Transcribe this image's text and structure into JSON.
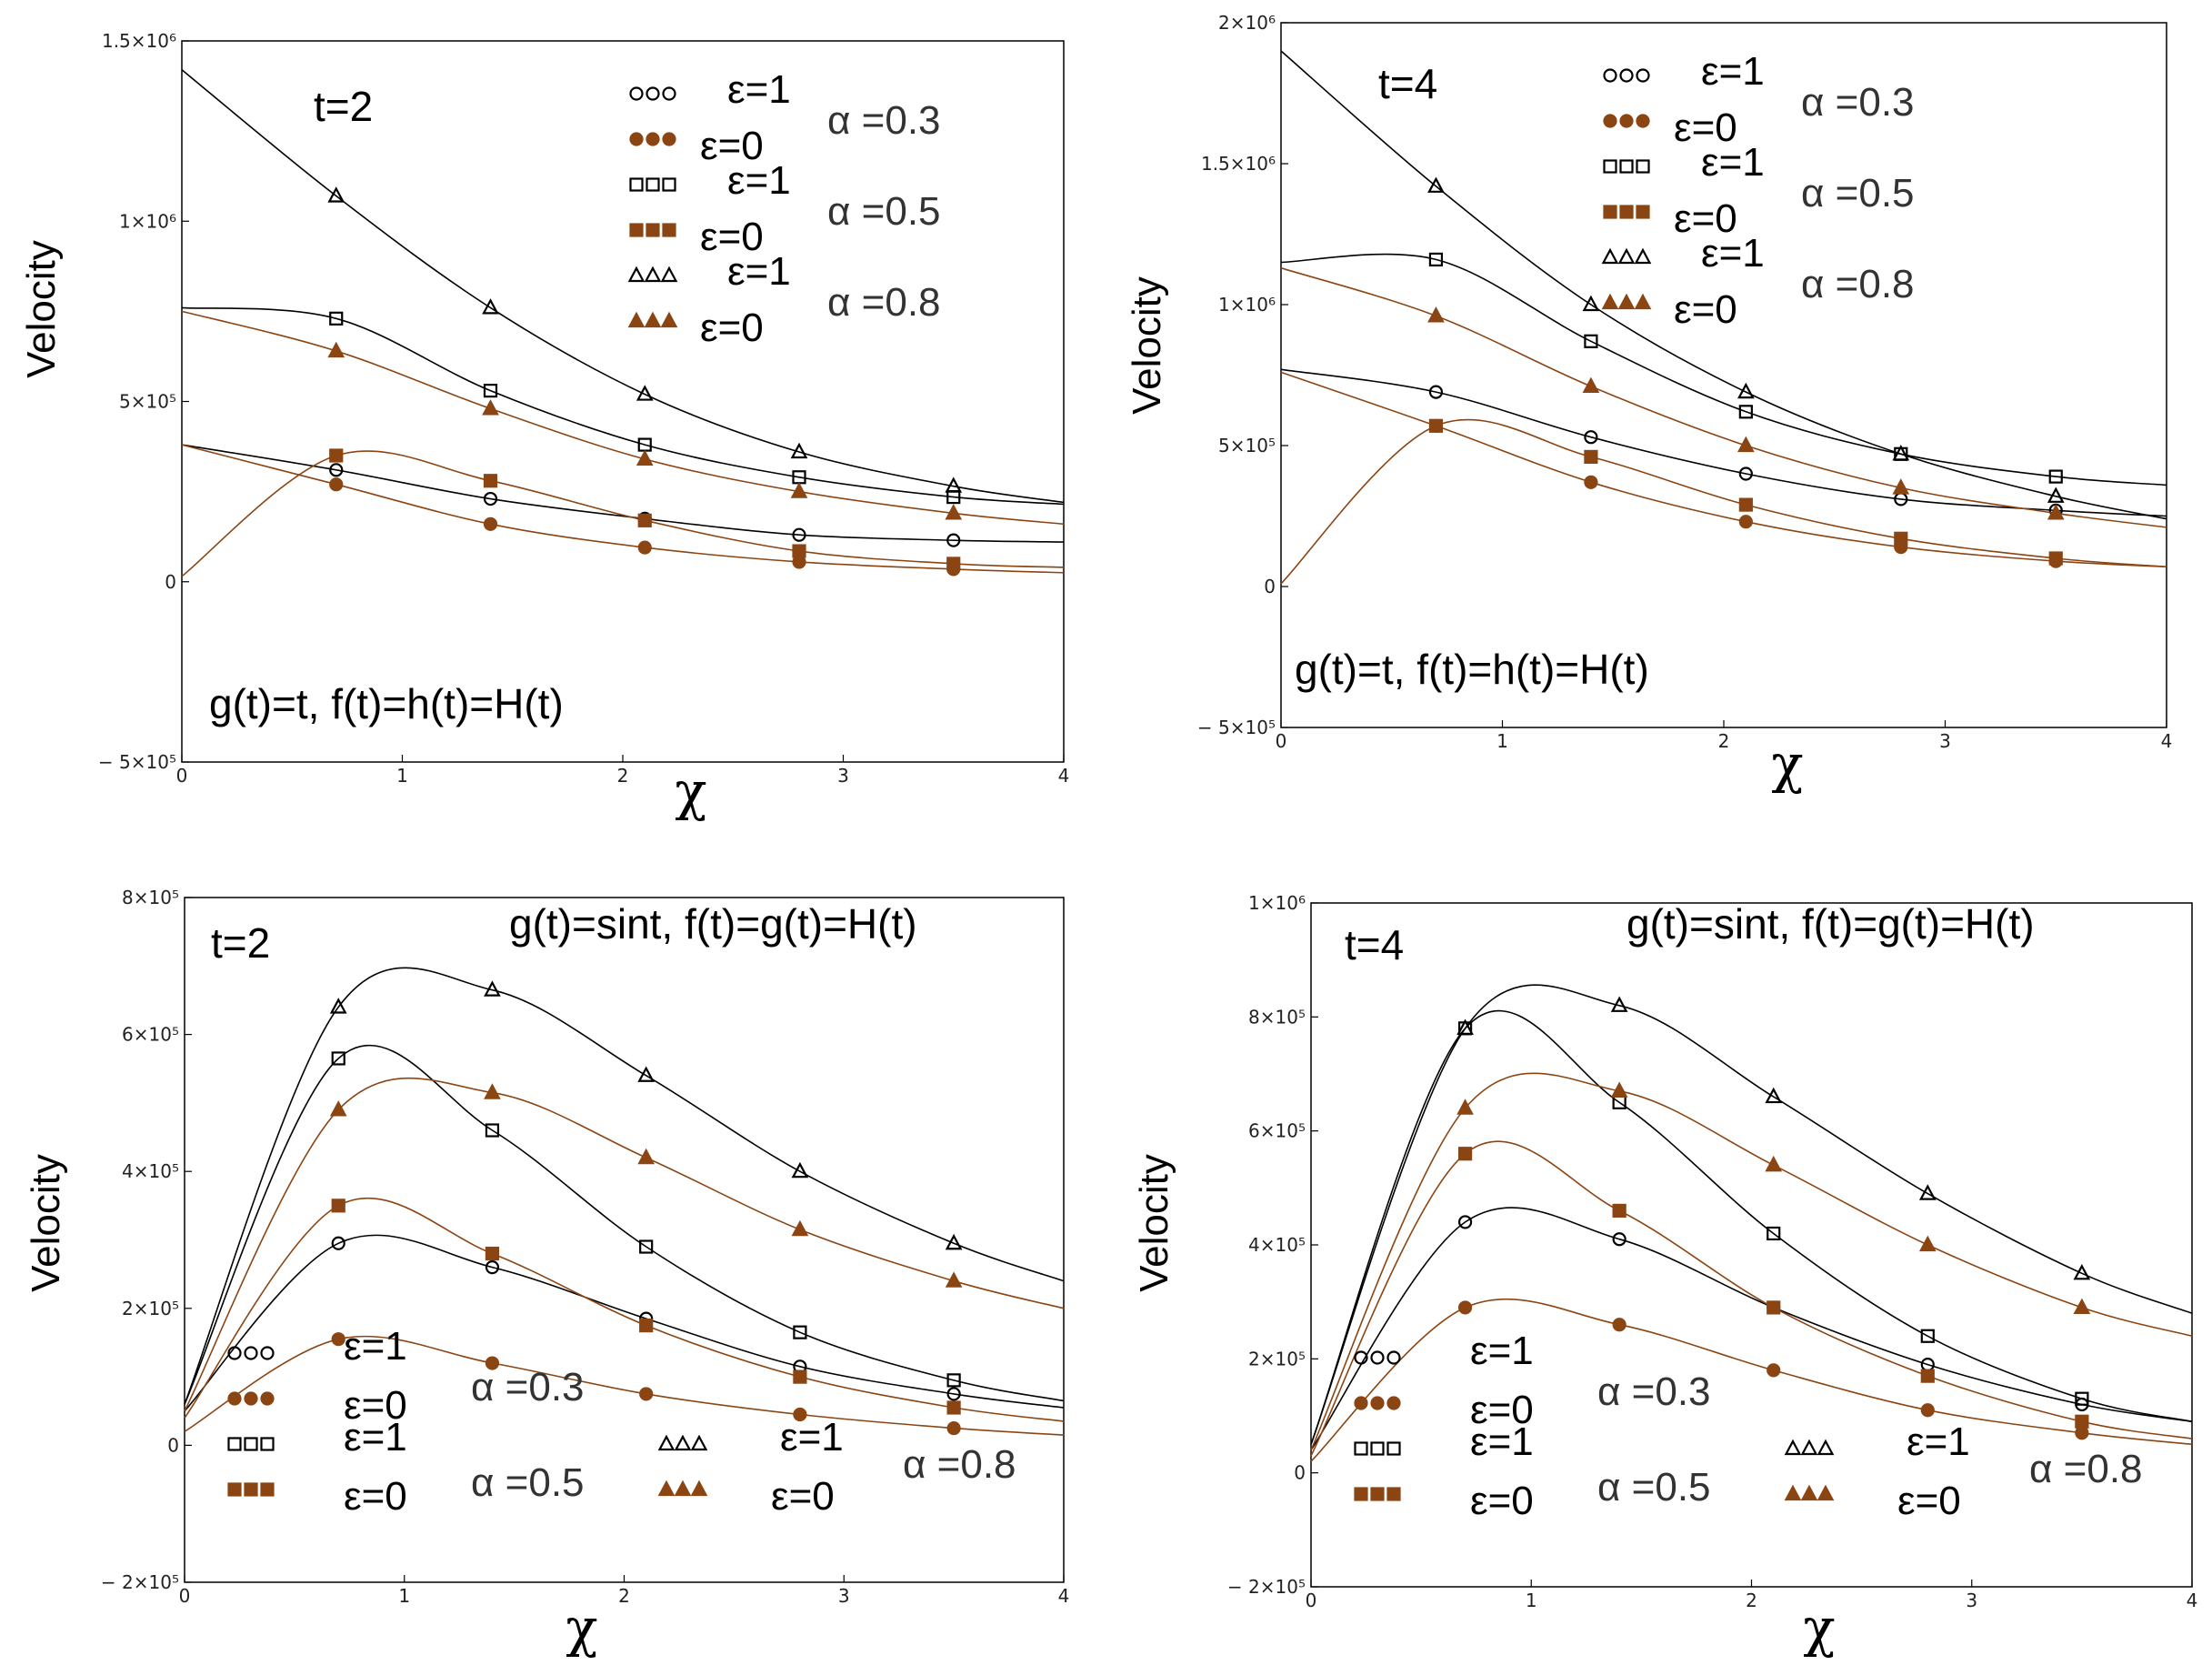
{
  "colors": {
    "eps1": "#000000",
    "eps0": "#8b4513",
    "frame": "#000000"
  },
  "chart_data": [
    {
      "type": "line",
      "title": "t=2",
      "annotation": "g(t)=t, f(t)=h(t)=H(t)",
      "xlabel": "χ",
      "ylabel": "Velocity",
      "xlim": [
        0,
        4
      ],
      "ylim": [
        -500000,
        1500000
      ],
      "xticks": [
        "0",
        "1",
        "2",
        "3",
        "4"
      ],
      "yticks": [
        {
          "v": 1500000,
          "t": "1.5×10⁶"
        },
        {
          "v": 1000000,
          "t": "1×10⁶"
        },
        {
          "v": 500000,
          "t": "5×10⁵"
        },
        {
          "v": 0,
          "t": "0"
        },
        {
          "v": -500000,
          "t": "− 5×10⁵"
        }
      ],
      "legend": [
        "ε=1",
        "ε=0",
        "ε=1",
        "ε=0",
        "ε=1",
        "ε=0"
      ],
      "legend_alpha": [
        "α =0.3",
        "α =0.5",
        "α =0.8"
      ],
      "legend_position": "top-right",
      "x": [
        0,
        0.7,
        1.4,
        2.1,
        2.8,
        3.5,
        4
      ],
      "series": [
        {
          "eps": 1,
          "alpha": 0.3,
          "marker": "circle",
          "values": [
            380000,
            310000,
            230000,
            175000,
            130000,
            115000,
            110000
          ]
        },
        {
          "eps": 0,
          "alpha": 0.3,
          "marker": "circle",
          "values": [
            380000,
            270000,
            160000,
            95000,
            55000,
            35000,
            25000
          ]
        },
        {
          "eps": 1,
          "alpha": 0.5,
          "marker": "square",
          "values": [
            760000,
            730000,
            530000,
            380000,
            290000,
            235000,
            215000
          ]
        },
        {
          "eps": 0,
          "alpha": 0.5,
          "marker": "square",
          "values": [
            15000,
            350000,
            280000,
            170000,
            85000,
            50000,
            40000
          ]
        },
        {
          "eps": 1,
          "alpha": 0.8,
          "marker": "triangle",
          "values": [
            1420000,
            1070000,
            760000,
            520000,
            360000,
            265000,
            220000
          ]
        },
        {
          "eps": 0,
          "alpha": 0.8,
          "marker": "triangle",
          "values": [
            750000,
            640000,
            480000,
            340000,
            250000,
            190000,
            160000
          ]
        }
      ]
    },
    {
      "type": "line",
      "title": "t=4",
      "annotation": "g(t)=t, f(t)=h(t)=H(t)",
      "xlabel": "χ",
      "ylabel": "Velocity",
      "xlim": [
        0,
        4
      ],
      "ylim": [
        -500000,
        2000000
      ],
      "xticks": [
        "0",
        "1",
        "2",
        "3",
        "4"
      ],
      "yticks": [
        {
          "v": 2000000,
          "t": "2×10⁶"
        },
        {
          "v": 1500000,
          "t": "1.5×10⁶"
        },
        {
          "v": 1000000,
          "t": "1×10⁶"
        },
        {
          "v": 500000,
          "t": "5×10⁵"
        },
        {
          "v": 0,
          "t": "0"
        },
        {
          "v": -500000,
          "t": "− 5×10⁵"
        }
      ],
      "legend": [
        "ε=1",
        "ε=0",
        "ε=1",
        "ε=0",
        "ε=1",
        "ε=0"
      ],
      "legend_alpha": [
        "α =0.3",
        "α =0.5",
        "α =0.8"
      ],
      "legend_position": "top-right",
      "x": [
        0,
        0.7,
        1.4,
        2.1,
        2.8,
        3.5,
        4
      ],
      "series": [
        {
          "eps": 1,
          "alpha": 0.3,
          "marker": "circle",
          "values": [
            770000,
            690000,
            530000,
            400000,
            310000,
            270000,
            250000
          ]
        },
        {
          "eps": 0,
          "alpha": 0.3,
          "marker": "circle",
          "values": [
            760000,
            570000,
            370000,
            230000,
            140000,
            90000,
            70000
          ]
        },
        {
          "eps": 1,
          "alpha": 0.5,
          "marker": "square",
          "values": [
            1150000,
            1160000,
            870000,
            620000,
            470000,
            390000,
            360000
          ]
        },
        {
          "eps": 0,
          "alpha": 0.5,
          "marker": "square",
          "values": [
            10000,
            570000,
            460000,
            290000,
            170000,
            100000,
            70000
          ]
        },
        {
          "eps": 1,
          "alpha": 0.8,
          "marker": "triangle",
          "values": [
            1900000,
            1420000,
            1000000,
            690000,
            470000,
            320000,
            240000
          ]
        },
        {
          "eps": 0,
          "alpha": 0.8,
          "marker": "triangle",
          "values": [
            1130000,
            960000,
            710000,
            500000,
            350000,
            260000,
            210000
          ]
        }
      ]
    },
    {
      "type": "line",
      "title": "t=2",
      "annotation": "g(t)=sint, f(t)=g(t)=H(t)",
      "xlabel": "χ",
      "ylabel": "Velocity",
      "xlim": [
        0,
        4
      ],
      "ylim": [
        -200000,
        800000
      ],
      "xticks": [
        "0",
        "1",
        "2",
        "3",
        "4"
      ],
      "yticks": [
        {
          "v": 800000,
          "t": "8×10⁵"
        },
        {
          "v": 600000,
          "t": "6×10⁵"
        },
        {
          "v": 400000,
          "t": "4×10⁵"
        },
        {
          "v": 200000,
          "t": "2×10⁵"
        },
        {
          "v": 0,
          "t": "0"
        },
        {
          "v": -200000,
          "t": "− 2×10⁵"
        }
      ],
      "legend": [
        "ε=1",
        "ε=0",
        "ε=1",
        "ε=0",
        "ε=1",
        "ε=0"
      ],
      "legend_alpha": [
        "α =0.3",
        "α =0.5",
        "α =0.8"
      ],
      "legend_position": "bottom",
      "x": [
        0,
        0.7,
        1.4,
        2.1,
        2.8,
        3.5,
        4
      ],
      "series": [
        {
          "eps": 1,
          "alpha": 0.3,
          "marker": "circle",
          "values": [
            50000,
            295000,
            260000,
            185000,
            115000,
            75000,
            55000
          ]
        },
        {
          "eps": 0,
          "alpha": 0.3,
          "marker": "circle",
          "values": [
            20000,
            155000,
            120000,
            75000,
            45000,
            25000,
            15000
          ]
        },
        {
          "eps": 1,
          "alpha": 0.5,
          "marker": "square",
          "values": [
            60000,
            565000,
            460000,
            290000,
            165000,
            95000,
            65000
          ]
        },
        {
          "eps": 0,
          "alpha": 0.5,
          "marker": "square",
          "values": [
            40000,
            350000,
            280000,
            175000,
            100000,
            55000,
            35000
          ]
        },
        {
          "eps": 1,
          "alpha": 0.8,
          "marker": "triangle",
          "values": [
            60000,
            640000,
            665000,
            540000,
            400000,
            295000,
            240000
          ]
        },
        {
          "eps": 0,
          "alpha": 0.8,
          "marker": "triangle",
          "values": [
            50000,
            490000,
            515000,
            420000,
            315000,
            240000,
            200000
          ]
        }
      ]
    },
    {
      "type": "line",
      "title": "t=4",
      "annotation": "g(t)=sint, f(t)=g(t)=H(t)",
      "xlabel": "χ",
      "ylabel": "Velocity",
      "xlim": [
        0,
        4
      ],
      "ylim": [
        -200000,
        1000000
      ],
      "xticks": [
        "0",
        "1",
        "2",
        "3",
        "4"
      ],
      "yticks": [
        {
          "v": 1000000,
          "t": "1×10⁶"
        },
        {
          "v": 800000,
          "t": "8×10⁵"
        },
        {
          "v": 600000,
          "t": "6×10⁵"
        },
        {
          "v": 400000,
          "t": "4×10⁵"
        },
        {
          "v": 200000,
          "t": "2×10⁵"
        },
        {
          "v": 0,
          "t": "0"
        },
        {
          "v": -200000,
          "t": "− 2×10⁵"
        }
      ],
      "legend": [
        "ε=1",
        "ε=0",
        "ε=1",
        "ε=0",
        "ε=1",
        "ε=0"
      ],
      "legend_alpha": [
        "α =0.3",
        "α =0.5",
        "α =0.8"
      ],
      "legend_position": "bottom",
      "x": [
        0,
        0.7,
        1.4,
        2.1,
        2.8,
        3.5,
        4
      ],
      "series": [
        {
          "eps": 1,
          "alpha": 0.3,
          "marker": "circle",
          "values": [
            40000,
            440000,
            410000,
            290000,
            190000,
            120000,
            90000
          ]
        },
        {
          "eps": 0,
          "alpha": 0.3,
          "marker": "circle",
          "values": [
            20000,
            290000,
            260000,
            180000,
            110000,
            70000,
            50000
          ]
        },
        {
          "eps": 1,
          "alpha": 0.5,
          "marker": "square",
          "values": [
            50000,
            780000,
            650000,
            420000,
            240000,
            130000,
            90000
          ]
        },
        {
          "eps": 0,
          "alpha": 0.5,
          "marker": "square",
          "values": [
            30000,
            560000,
            460000,
            290000,
            170000,
            90000,
            60000
          ]
        },
        {
          "eps": 1,
          "alpha": 0.8,
          "marker": "triangle",
          "values": [
            50000,
            780000,
            820000,
            660000,
            490000,
            350000,
            280000
          ]
        },
        {
          "eps": 0,
          "alpha": 0.8,
          "marker": "triangle",
          "values": [
            40000,
            640000,
            670000,
            540000,
            400000,
            290000,
            240000
          ]
        }
      ]
    }
  ]
}
